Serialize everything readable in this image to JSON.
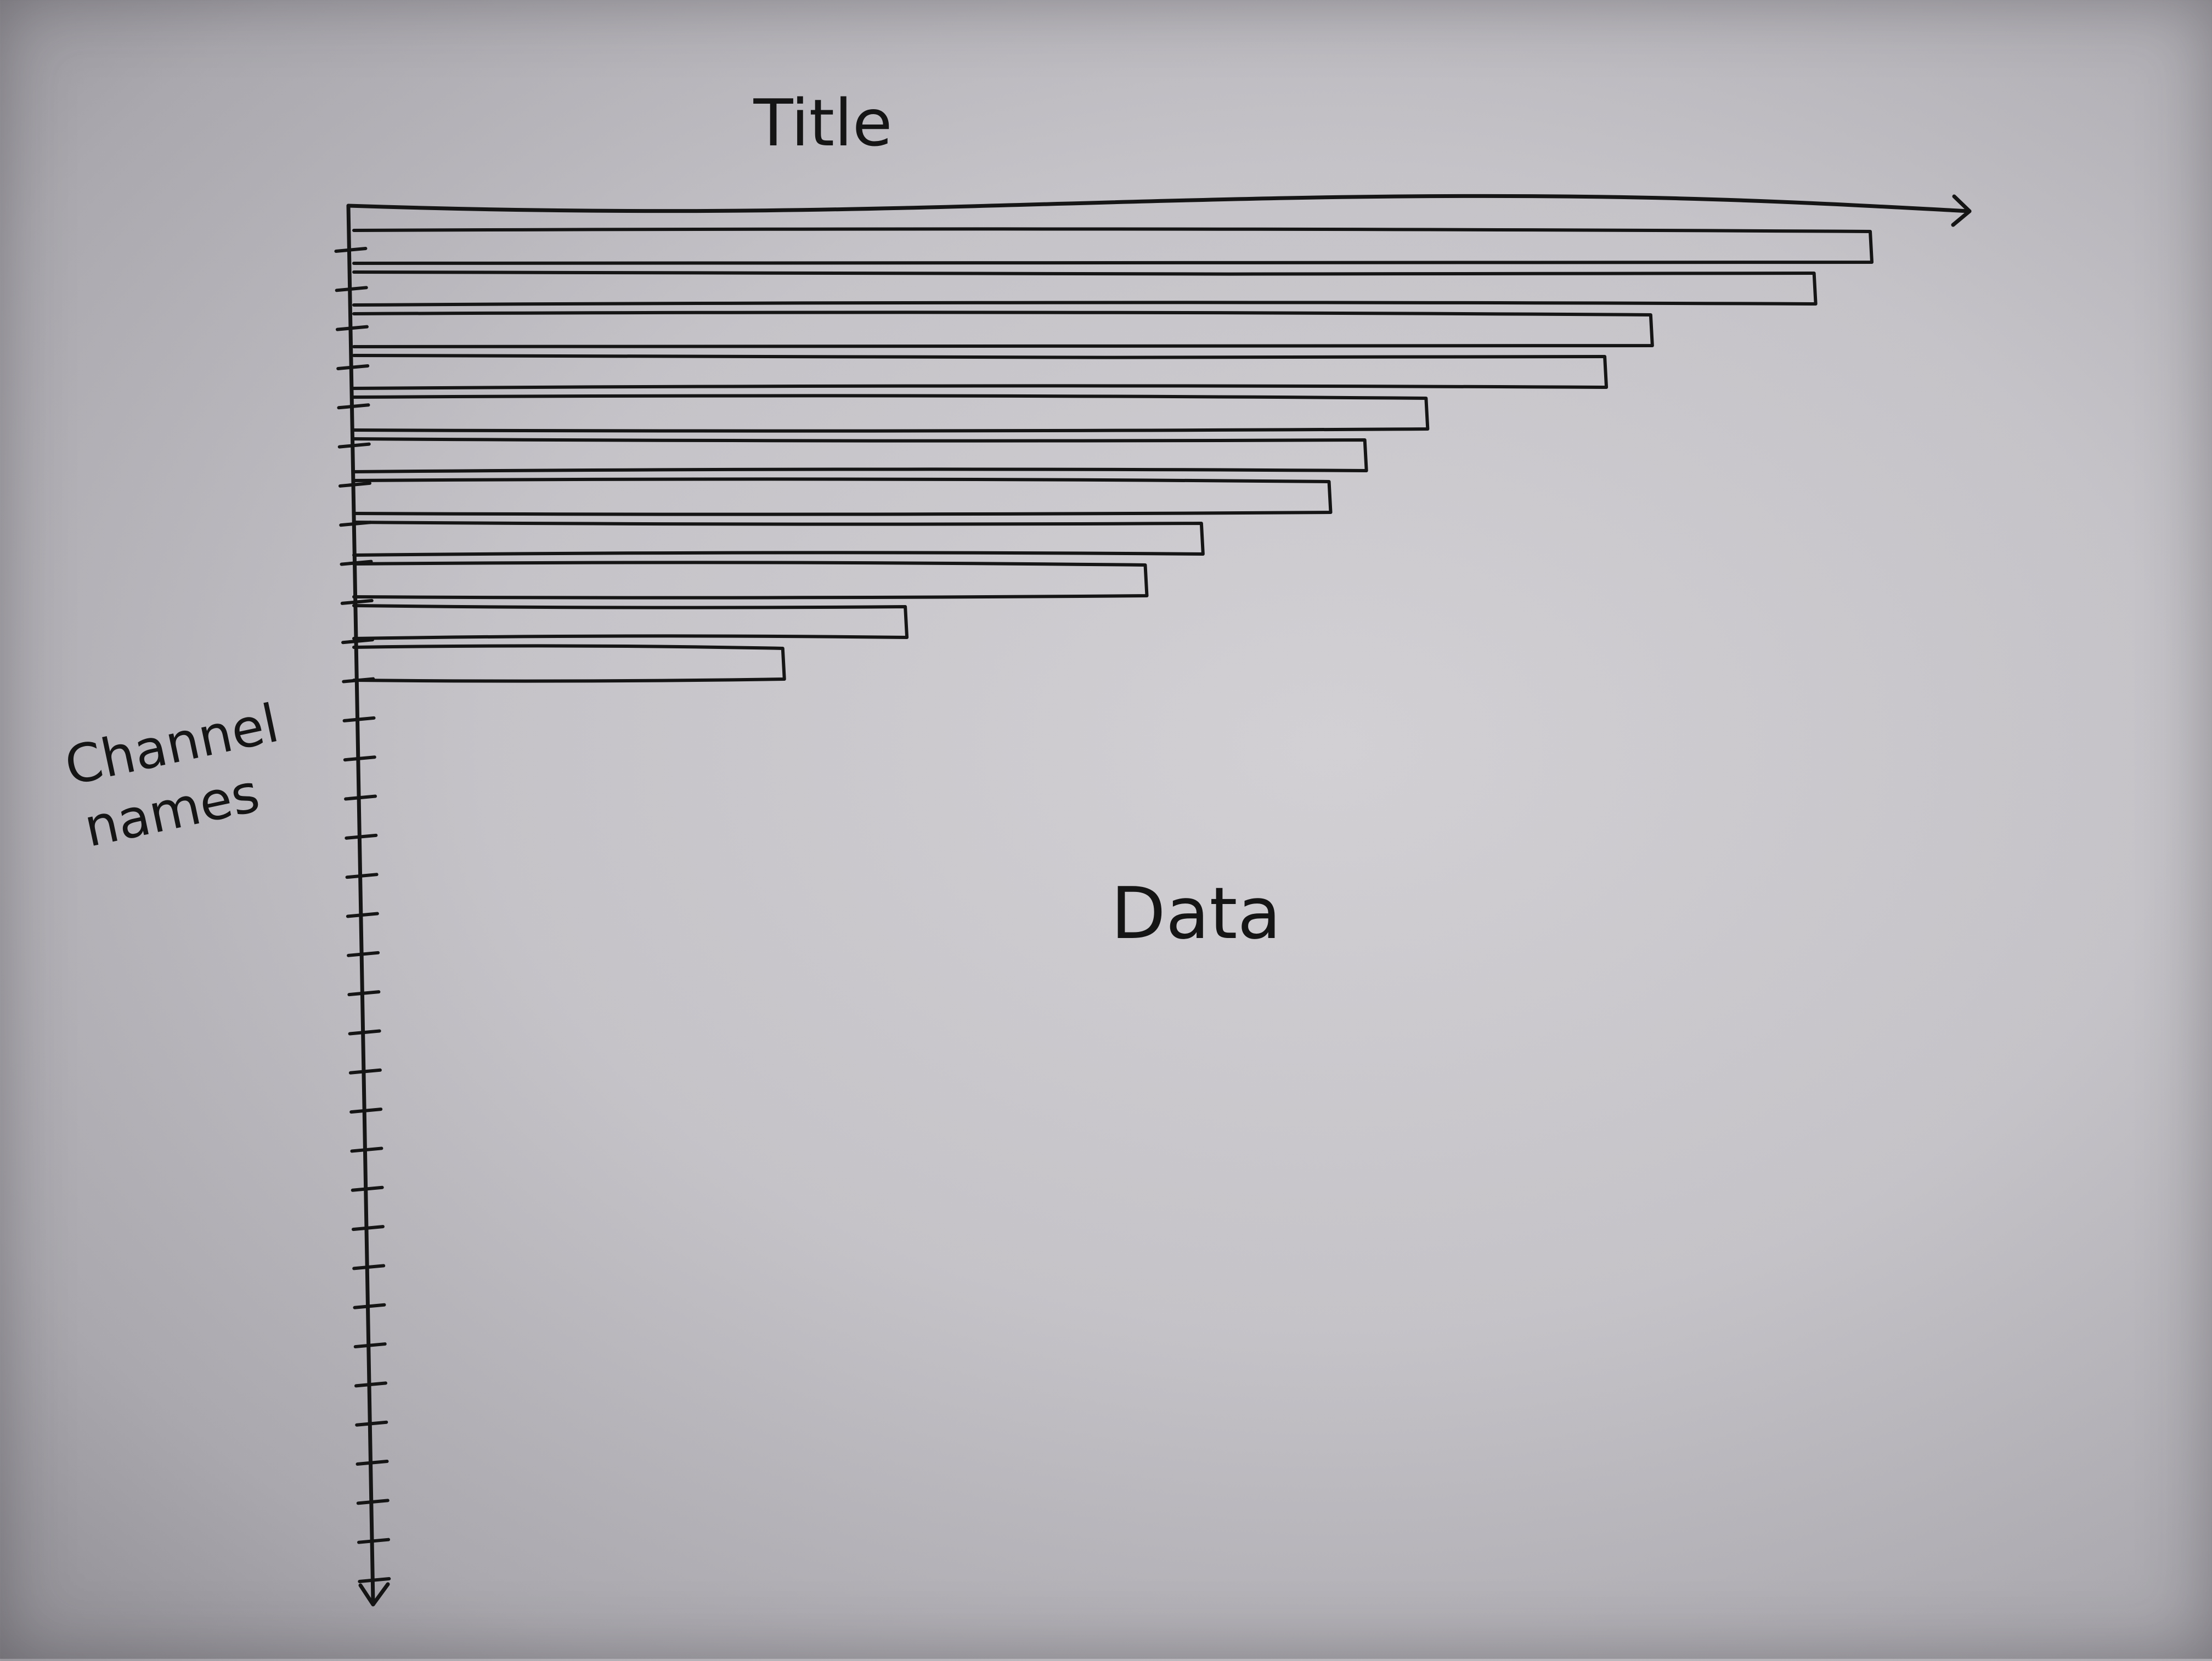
{
  "chart_data": {
    "type": "bar",
    "orientation": "horizontal",
    "title": "Title",
    "ylabel_line1": "Channel",
    "ylabel_line2": "names",
    "annotation": "Data",
    "categories_count": 11,
    "values": [
      29.7,
      28.6,
      25.4,
      24.5,
      21.0,
      19.8,
      19.1,
      16.6,
      15.5,
      10.8,
      8.4
    ],
    "xlim": [
      0,
      31
    ],
    "y_tick_count": 35,
    "grid": false,
    "legend": "none",
    "ink_color": "#151515"
  }
}
